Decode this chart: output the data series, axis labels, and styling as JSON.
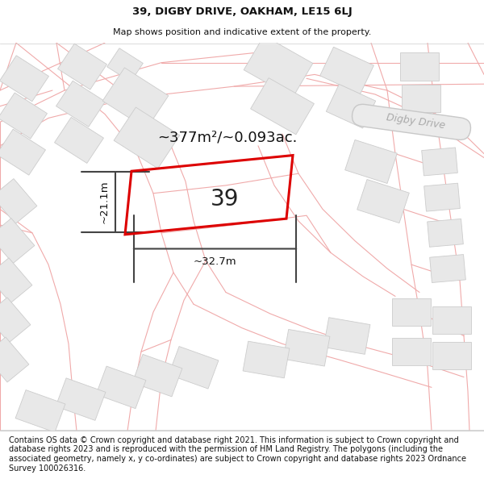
{
  "title_line1": "39, DIGBY DRIVE, OAKHAM, LE15 6LJ",
  "title_line2": "Map shows position and indicative extent of the property.",
  "footer_text": "Contains OS data © Crown copyright and database right 2021. This information is subject to Crown copyright and database rights 2023 and is reproduced with the permission of HM Land Registry. The polygons (including the associated geometry, namely x, y co-ordinates) are subject to Crown copyright and database rights 2023 Ordnance Survey 100026316.",
  "area_text": "~377m²/~0.093ac.",
  "number_text": "39",
  "width_label": "~32.7m",
  "height_label": "~21.1m",
  "road_label": "Digby Drive",
  "map_bg": "#ffffff",
  "plot_stroke": "#dd0000",
  "building_fill": "#e8e8e8",
  "building_stroke": "#cccccc",
  "pink_line": "#f0aaaa",
  "pink_line2": "#e8b0b0",
  "dim_color": "#444444",
  "road_pill_fill": "#e0e0e0",
  "road_pill_stroke": "#cccccc",
  "road_label_color": "#aaaaaa",
  "title_color": "#111111",
  "footer_color": "#111111"
}
